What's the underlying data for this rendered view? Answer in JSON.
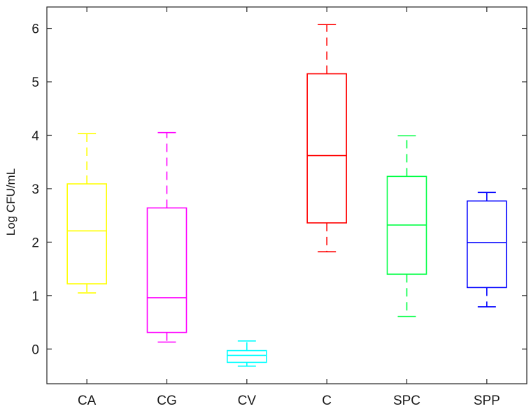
{
  "chart_data": {
    "type": "box",
    "title": "",
    "xlabel": "",
    "ylabel": "Log CFU/mL",
    "ylim": [
      -0.65,
      6.4
    ],
    "yticks": [
      0,
      1,
      2,
      3,
      4,
      5,
      6
    ],
    "categories": [
      "CA",
      "CG",
      "CV",
      "C",
      "SPC",
      "SPP"
    ],
    "series": [
      {
        "category": "CA",
        "color": "#ffff00",
        "whisker_low": 1.05,
        "q1": 1.22,
        "median": 2.21,
        "q3": 3.09,
        "whisker_high": 4.03
      },
      {
        "category": "CG",
        "color": "#ff00ff",
        "whisker_low": 0.13,
        "q1": 0.31,
        "median": 0.96,
        "q3": 2.64,
        "whisker_high": 4.05
      },
      {
        "category": "CV",
        "color": "#00ffff",
        "whisker_low": -0.32,
        "q1": -0.25,
        "median": -0.12,
        "q3": -0.03,
        "whisker_high": 0.15
      },
      {
        "category": "C",
        "color": "#ff0000",
        "whisker_low": 1.82,
        "q1": 2.36,
        "median": 3.62,
        "q3": 5.15,
        "whisker_high": 6.07
      },
      {
        "category": "SPC",
        "color": "#00ff44",
        "whisker_low": 0.61,
        "q1": 1.4,
        "median": 2.32,
        "q3": 3.23,
        "whisker_high": 3.99
      },
      {
        "category": "SPP",
        "color": "#0000ff",
        "whisker_low": 0.79,
        "q1": 1.15,
        "median": 1.99,
        "q3": 2.77,
        "whisker_high": 2.93
      }
    ],
    "grid": false,
    "legend": "none"
  }
}
